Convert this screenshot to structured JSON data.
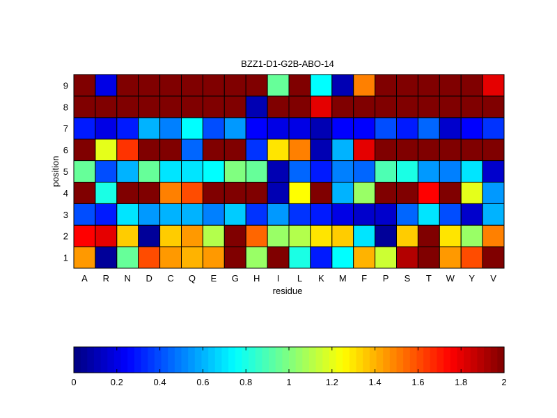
{
  "chart_data": {
    "type": "heatmap",
    "title": "BZZ1-D1-G2B-ABO-14",
    "xlabel": "residue",
    "ylabel": "position",
    "x_categories": [
      "A",
      "R",
      "N",
      "D",
      "C",
      "Q",
      "E",
      "G",
      "H",
      "I",
      "L",
      "K",
      "M",
      "F",
      "P",
      "S",
      "T",
      "W",
      "Y",
      "V"
    ],
    "y_categories": [
      "1",
      "2",
      "3",
      "4",
      "5",
      "6",
      "7",
      "8",
      "9"
    ],
    "value_range": [
      0,
      2
    ],
    "colormap": "jet",
    "grid": true,
    "values": [
      [
        1.45,
        0.05,
        0.95,
        1.6,
        1.45,
        1.4,
        1.45,
        2.0,
        1.05,
        2.0,
        0.8,
        0.3,
        0.75,
        1.4,
        1.15,
        1.9,
        2.0,
        1.45,
        1.6,
        2.0
      ],
      [
        1.75,
        1.8,
        1.35,
        0.05,
        1.35,
        1.45,
        1.1,
        2.0,
        1.55,
        1.05,
        1.1,
        1.3,
        1.35,
        0.7,
        0.05,
        1.35,
        2.0,
        1.3,
        1.05,
        1.5
      ],
      [
        0.4,
        0.3,
        0.7,
        0.55,
        0.6,
        0.6,
        0.5,
        0.65,
        0.35,
        0.55,
        0.35,
        0.3,
        0.2,
        0.15,
        0.15,
        0.45,
        0.7,
        0.4,
        0.15,
        0.6
      ],
      [
        2.0,
        0.8,
        2.0,
        2.0,
        1.5,
        1.6,
        2.0,
        2.0,
        2.0,
        0.1,
        1.25,
        2.0,
        0.6,
        1.05,
        2.0,
        2.0,
        1.75,
        2.0,
        1.2,
        0.55
      ],
      [
        0.95,
        0.4,
        0.6,
        0.95,
        0.7,
        0.7,
        0.75,
        1.0,
        0.95,
        0.1,
        0.45,
        0.3,
        0.5,
        0.45,
        0.9,
        0.8,
        0.55,
        0.5,
        0.7,
        0.15
      ],
      [
        2.0,
        1.2,
        1.65,
        2.0,
        2.0,
        0.45,
        2.0,
        2.0,
        0.35,
        1.3,
        1.5,
        0.1,
        0.6,
        1.8,
        2.0,
        2.0,
        2.0,
        2.0,
        2.0,
        2.0
      ],
      [
        0.3,
        0.2,
        0.3,
        0.6,
        0.5,
        0.75,
        0.4,
        0.55,
        0.25,
        0.2,
        0.2,
        0.1,
        0.25,
        0.25,
        0.4,
        0.3,
        0.45,
        0.15,
        0.25,
        0.35
      ],
      [
        2.0,
        2.0,
        2.0,
        2.0,
        2.0,
        2.0,
        2.0,
        2.0,
        0.1,
        2.0,
        2.0,
        1.8,
        2.0,
        2.0,
        2.0,
        2.0,
        2.0,
        2.0,
        2.0,
        2.0
      ],
      [
        2.0,
        0.2,
        2.0,
        2.0,
        2.0,
        2.0,
        2.0,
        2.0,
        2.0,
        0.95,
        2.0,
        0.75,
        0.1,
        1.5,
        2.0,
        2.0,
        2.0,
        2.0,
        2.0,
        1.8
      ]
    ],
    "colorbar": {
      "ticks": [
        "0",
        "0.2",
        "0.4",
        "0.6",
        "0.8",
        "1",
        "1.2",
        "1.4",
        "1.6",
        "1.8",
        "2"
      ]
    }
  }
}
